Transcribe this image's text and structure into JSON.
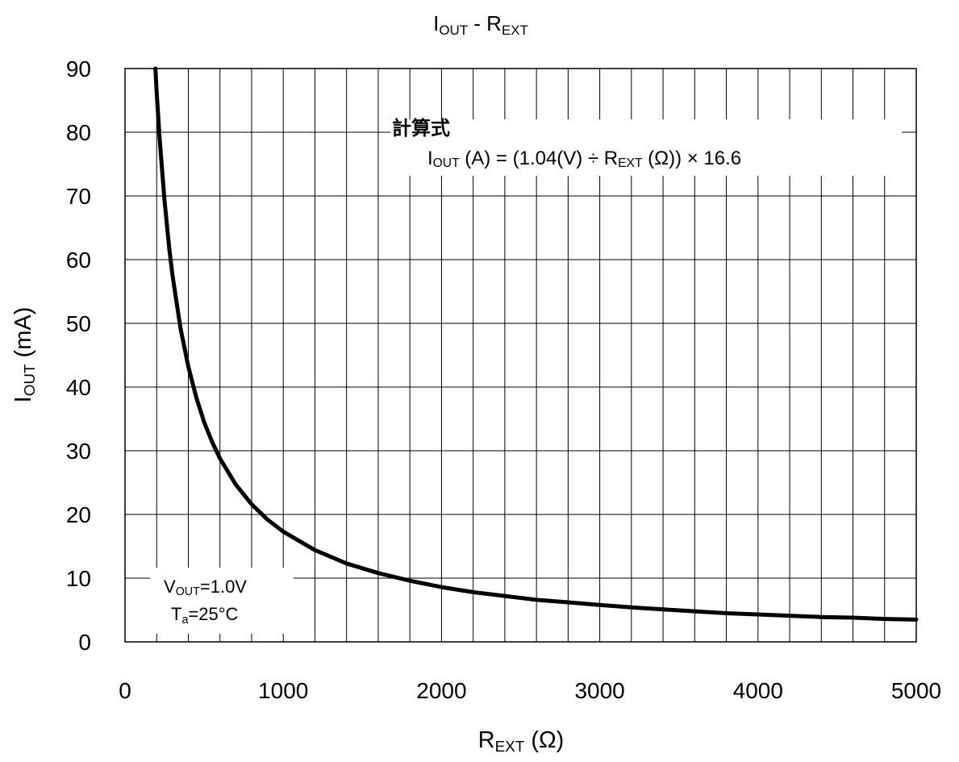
{
  "chart_data": {
    "type": "line",
    "title": {
      "main": "I",
      "sub": "OUT",
      "suffix": " - R",
      "sub2": "EXT"
    },
    "xlabel": {
      "main": "R",
      "sub": "EXT",
      "suffix": " (Ω)"
    },
    "ylabel": {
      "main": "I",
      "sub": "OUT",
      "suffix": " (mA)"
    },
    "xlim": [
      0,
      5000
    ],
    "ylim": [
      0,
      90
    ],
    "x_ticks": [
      "0",
      "1000",
      "2000",
      "3000",
      "4000",
      "5000"
    ],
    "y_ticks": [
      "0",
      "10",
      "20",
      "30",
      "40",
      "50",
      "60",
      "70",
      "80",
      "90"
    ],
    "x_gridlines": [
      200,
      400,
      600,
      800,
      1000,
      1200,
      1400,
      1600,
      1800,
      2000,
      2200,
      2400,
      2600,
      2800,
      3000,
      3200,
      3400,
      3600,
      3800,
      4000,
      4200,
      4400,
      4600,
      4800,
      5000
    ],
    "y_gridlines": [
      10,
      20,
      30,
      40,
      50,
      60,
      70,
      80,
      90
    ],
    "grid": true,
    "series": [
      {
        "color": "#000000",
        "x": [
          192,
          200,
          220,
          250,
          280,
          300,
          350,
          400,
          450,
          500,
          550,
          600,
          700,
          800,
          900,
          1000,
          1200,
          1400,
          1600,
          1800,
          2000,
          2200,
          2400,
          2600,
          2800,
          3000,
          3200,
          3400,
          3600,
          3800,
          4000,
          4200,
          4400,
          4600,
          4800,
          5000
        ],
        "y": [
          90,
          86.3,
          78.5,
          69.1,
          61.7,
          57.5,
          49.3,
          43.2,
          38.4,
          34.5,
          31.4,
          28.8,
          24.7,
          21.6,
          19.2,
          17.3,
          14.4,
          12.3,
          10.8,
          9.6,
          8.6,
          7.8,
          7.2,
          6.6,
          6.2,
          5.8,
          5.4,
          5.1,
          4.8,
          4.5,
          4.3,
          4.1,
          3.9,
          3.8,
          3.6,
          3.5
        ]
      }
    ],
    "annotations": {
      "formula_heading": "計算式",
      "formula": {
        "p1": "I",
        "p1_sub": "OUT",
        "p2": " (A) = (1.04(V) ÷ R",
        "p2_sub": "EXT",
        "p3": " (Ω)) × 16.6"
      },
      "conditions": {
        "line1_main": "V",
        "line1_sub": "OUT",
        "line1_suffix": "=1.0V",
        "line2_main": "T",
        "line2_sub": "a",
        "line2_suffix": "=25°C"
      }
    }
  }
}
